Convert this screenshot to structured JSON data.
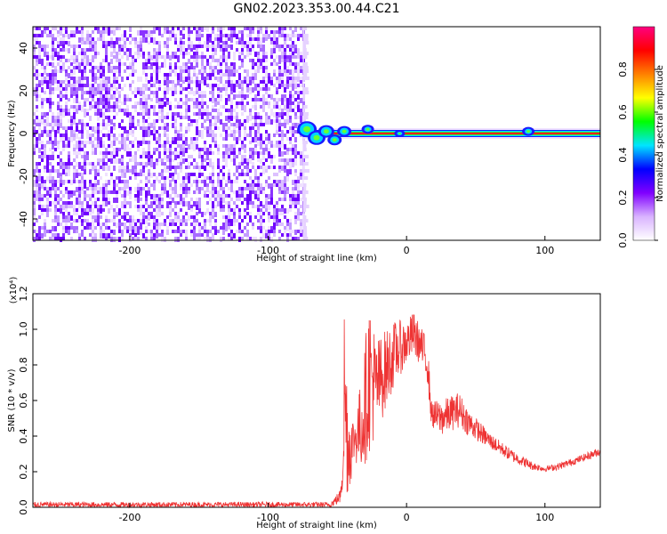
{
  "title": "GN02.2023.353.00.44.C21",
  "chart_data": [
    {
      "type": "heatmap",
      "xlabel": "Height of straight line (km)",
      "ylabel": "Frequency (Hz)",
      "xlim": [
        -270,
        140
      ],
      "ylim": [
        -50,
        50
      ],
      "xticks": [
        -200,
        -100,
        0,
        100
      ],
      "yticks": [
        -40,
        -20,
        0,
        20,
        40
      ],
      "noise_region_x": [
        -270,
        -75
      ],
      "signal_line": {
        "x": [
          -75,
          140
        ],
        "frequency": 0
      },
      "colorbar": {
        "label": "Normalized spectral amplitude",
        "range": [
          0.0,
          1.0
        ],
        "ticks": [
          "0.0",
          "0.2",
          "0.4",
          "0.6",
          "0.8"
        ],
        "colormap": [
          "#ffffff",
          "#d9b3ff",
          "#8000ff",
          "#0000ff",
          "#00e5ff",
          "#00ff00",
          "#ffff00",
          "#ff8000",
          "#ff0000",
          "#ff0080"
        ]
      }
    },
    {
      "type": "line",
      "xlabel": "Height of straight line (km)",
      "ylabel": "SNR (10 * v/v)",
      "y_multiplier": "(x10⁴)",
      "xlim": [
        -270,
        140
      ],
      "ylim": [
        0,
        1.2
      ],
      "xticks": [
        -200,
        -100,
        0,
        100
      ],
      "yticks": [
        "0.0",
        "0.2",
        "0.4",
        "0.6",
        "0.8",
        "1.0",
        "1.2"
      ],
      "color": "#ee3333",
      "envelope": [
        {
          "x": -270,
          "lo": 0.0,
          "hi": 0.03
        },
        {
          "x": -55,
          "lo": 0.0,
          "hi": 0.03
        },
        {
          "x": -48,
          "lo": 0.02,
          "hi": 0.1
        },
        {
          "x": -46,
          "lo": 0.05,
          "hi": 0.55
        },
        {
          "x": -45,
          "lo": 0.1,
          "hi": 1.2
        },
        {
          "x": -42,
          "lo": 0.05,
          "hi": 0.6
        },
        {
          "x": -38,
          "lo": 0.25,
          "hi": 0.5
        },
        {
          "x": -32,
          "lo": 0.2,
          "hi": 0.75
        },
        {
          "x": -27,
          "lo": 0.3,
          "hi": 1.2
        },
        {
          "x": -22,
          "lo": 0.4,
          "hi": 0.95
        },
        {
          "x": -15,
          "lo": 0.55,
          "hi": 1.0
        },
        {
          "x": -8,
          "lo": 0.7,
          "hi": 1.05
        },
        {
          "x": 0,
          "lo": 0.8,
          "hi": 1.05
        },
        {
          "x": 5,
          "lo": 0.85,
          "hi": 1.1
        },
        {
          "x": 10,
          "lo": 0.8,
          "hi": 1.02
        },
        {
          "x": 15,
          "lo": 0.7,
          "hi": 0.95
        },
        {
          "x": 18,
          "lo": 0.45,
          "hi": 0.6
        },
        {
          "x": 25,
          "lo": 0.4,
          "hi": 0.6
        },
        {
          "x": 38,
          "lo": 0.45,
          "hi": 0.65
        },
        {
          "x": 45,
          "lo": 0.4,
          "hi": 0.55
        },
        {
          "x": 60,
          "lo": 0.33,
          "hi": 0.42
        },
        {
          "x": 75,
          "lo": 0.26,
          "hi": 0.33
        },
        {
          "x": 90,
          "lo": 0.21,
          "hi": 0.26
        },
        {
          "x": 100,
          "lo": 0.2,
          "hi": 0.23
        },
        {
          "x": 110,
          "lo": 0.21,
          "hi": 0.25
        },
        {
          "x": 125,
          "lo": 0.25,
          "hi": 0.29
        },
        {
          "x": 140,
          "lo": 0.29,
          "hi": 0.34
        }
      ]
    }
  ]
}
